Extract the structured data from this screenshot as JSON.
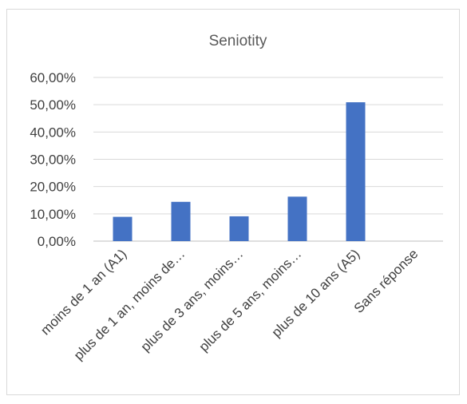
{
  "chart_data": {
    "type": "bar",
    "title": "Seniotity",
    "categories": [
      "moins de 1 an (A1)",
      "plus de 1 an, moins de…",
      "plus de 3 ans, moins…",
      "plus de 5 ans, moins…",
      "plus de 10 ans (A5)",
      "Sans réponse"
    ],
    "values": [
      8.9,
      14.4,
      9.1,
      16.3,
      50.9,
      0
    ],
    "ylim": [
      0,
      60
    ],
    "yticks": [
      "0,00%",
      "10,00%",
      "20,00%",
      "30,00%",
      "40,00%",
      "50,00%",
      "60,00%"
    ],
    "grid": true,
    "legend": "none",
    "colors": {
      "bar": "#4472c4",
      "grid": "#d9d9d9",
      "axis": "#bfbfbf"
    }
  }
}
